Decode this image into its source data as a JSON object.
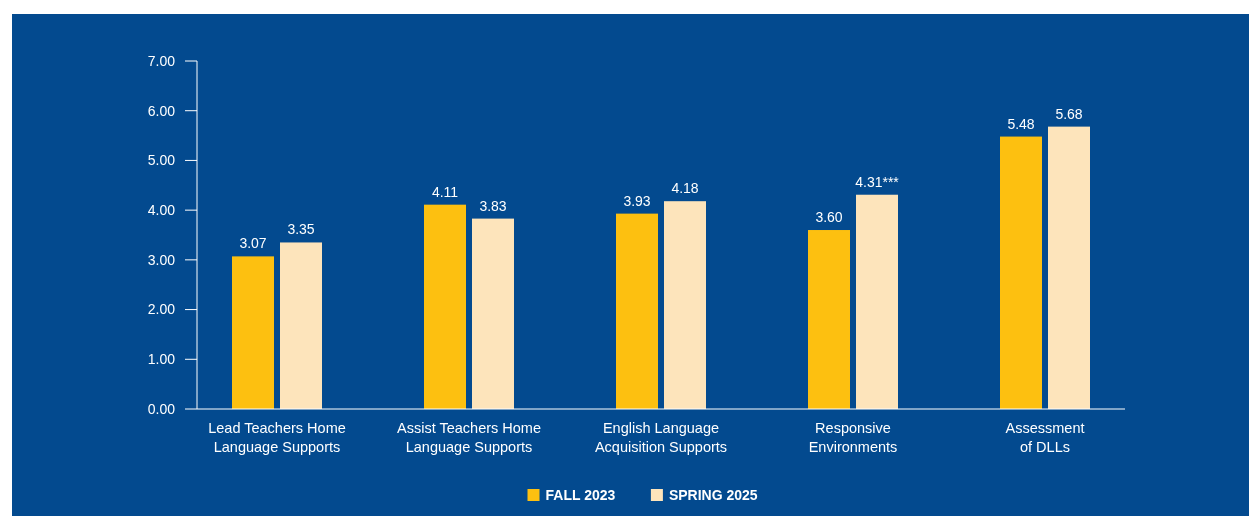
{
  "chart_data": {
    "type": "bar",
    "categories": [
      "Lead Teachers Home\nLanguage Supports",
      "Assist Teachers Home\nLanguage Supports",
      "English Language\nAcquisition Supports",
      "Responsive\nEnvironments",
      "Assessment\nof DLLs"
    ],
    "series": [
      {
        "name": "FALL 2023",
        "color": "#fdc010",
        "values": [
          3.07,
          4.11,
          3.93,
          3.6,
          5.48
        ],
        "value_labels": [
          "3.07",
          "4.11",
          "3.93",
          "3.60",
          "5.48"
        ]
      },
      {
        "name": "SPRING 2025",
        "color": "#fde4bb",
        "values": [
          3.35,
          3.83,
          4.18,
          4.31,
          5.68
        ],
        "value_labels": [
          "3.35",
          "3.83",
          "4.18",
          "4.31***",
          "5.68"
        ]
      }
    ],
    "ylim": [
      0,
      7
    ],
    "yticks": [
      {
        "value": 0,
        "label": "0.00"
      },
      {
        "value": 1,
        "label": "1.00"
      },
      {
        "value": 2,
        "label": "2.00"
      },
      {
        "value": 3,
        "label": "3.00"
      },
      {
        "value": 4,
        "label": "4.00"
      },
      {
        "value": 5,
        "label": "5.00"
      },
      {
        "value": 6,
        "label": "6.00"
      },
      {
        "value": 7,
        "label": "7.00"
      }
    ],
    "grid": false,
    "legend": "bottom"
  }
}
